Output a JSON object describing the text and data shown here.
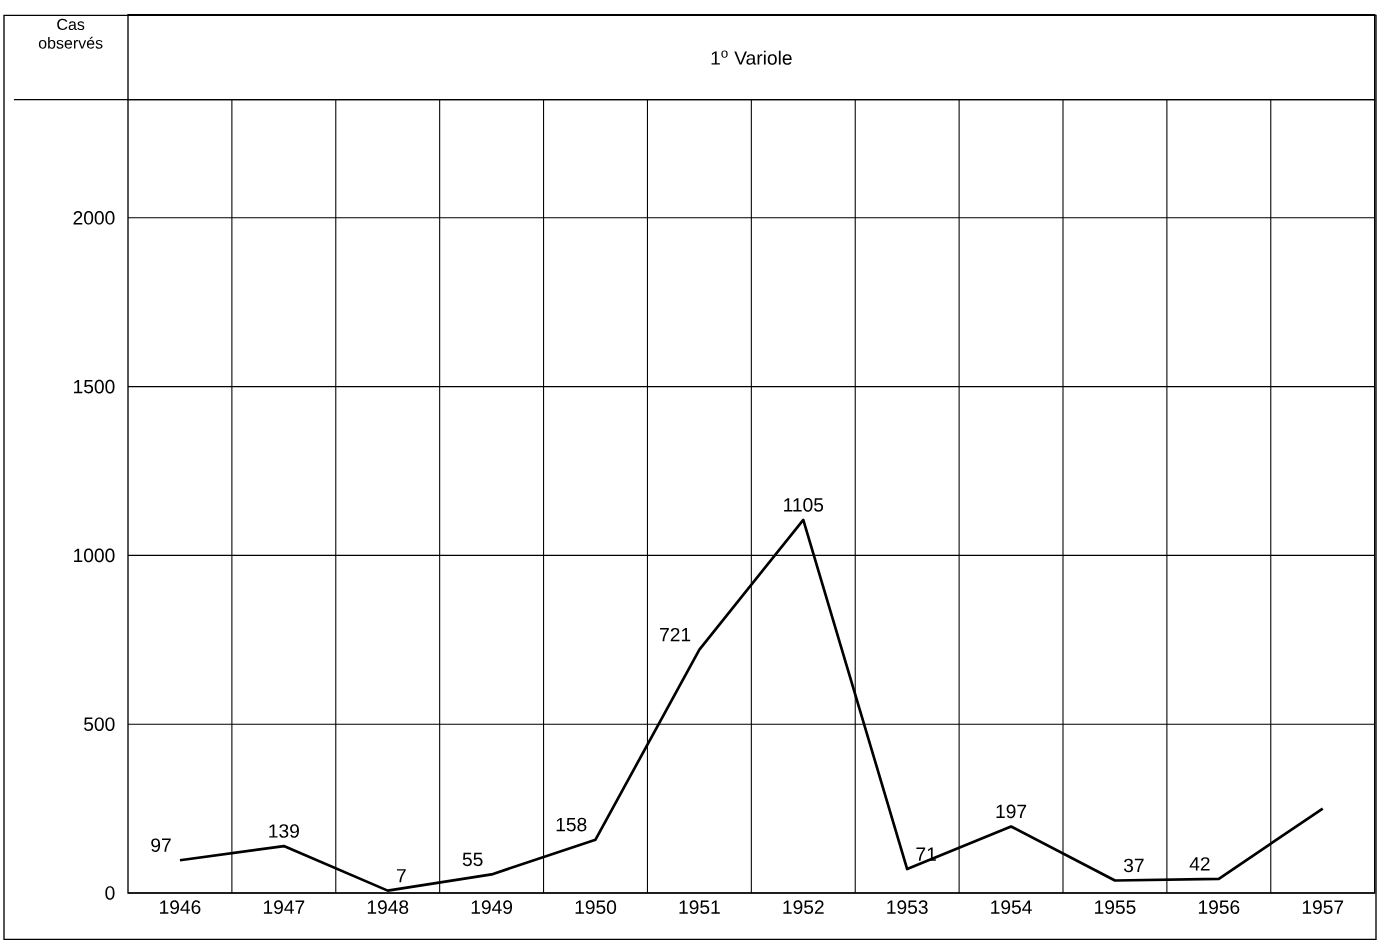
{
  "chart_data": {
    "type": "line",
    "title": "1$^{o}$ Variole",
    "ylabel": "Cas observés",
    "categories": [
      "1946",
      "1947",
      "1948",
      "1949",
      "1950",
      "1951",
      "1952",
      "1953",
      "1954",
      "1955",
      "1956",
      "1957"
    ],
    "values": [
      97,
      139,
      7,
      55,
      158,
      721,
      1105,
      71,
      197,
      37,
      42,
      250
    ],
    "value_labels": [
      "97",
      "139",
      "7",
      "55",
      "158",
      "721",
      "1105",
      "71",
      "197",
      "37",
      "42",
      null
    ],
    "color": "#000000",
    "ylim": [
      0,
      2350
    ],
    "yticks": [
      0,
      500,
      1000,
      1500,
      2000
    ],
    "grid": true,
    "marker": "none",
    "line_style": "solid"
  }
}
